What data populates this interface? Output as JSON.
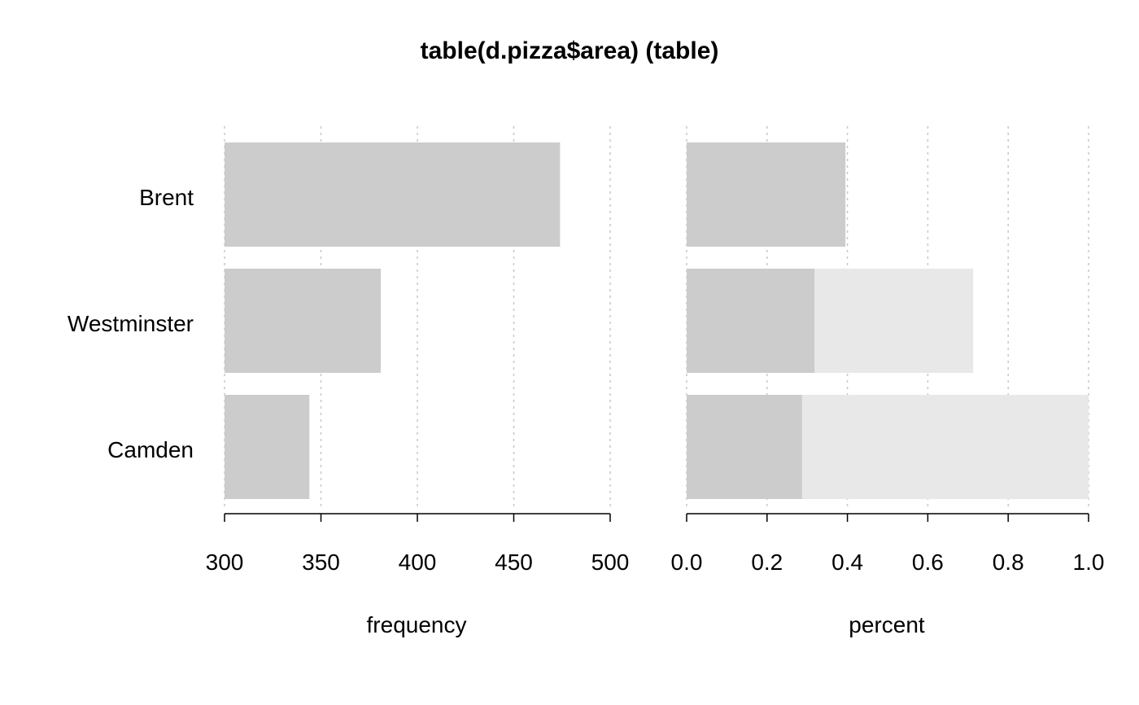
{
  "chart_data": {
    "title": "table(d.pizza$area) (table)",
    "categories": [
      "Brent",
      "Westminster",
      "Camden"
    ],
    "colors": {
      "bar": "#cccccc",
      "cumulative": "#e8e8e8",
      "grid": "#c8c8c8",
      "axis": "#000000"
    },
    "panels": [
      {
        "type": "bar",
        "orientation": "horizontal",
        "xlabel": "frequency",
        "xlim": [
          300,
          500
        ],
        "ticks": [
          300,
          350,
          400,
          450,
          500
        ],
        "tick_labels": [
          "300",
          "350",
          "400",
          "450",
          "500"
        ],
        "series": [
          {
            "values": [
              474,
              381,
              344
            ]
          }
        ],
        "grid": true
      },
      {
        "type": "bar",
        "orientation": "horizontal",
        "xlabel": "percent",
        "xlim": [
          0,
          1
        ],
        "ticks": [
          0,
          0.2,
          0.4,
          0.6,
          0.8,
          1.0
        ],
        "tick_labels": [
          "0.0",
          "0.2",
          "0.4",
          "0.6",
          "0.8",
          "1.0"
        ],
        "series": [
          {
            "values": [
              0.395,
              0.318,
              0.287
            ]
          },
          {
            "values": [
              0.395,
              0.713,
              1.0
            ]
          }
        ],
        "grid": true
      }
    ]
  }
}
